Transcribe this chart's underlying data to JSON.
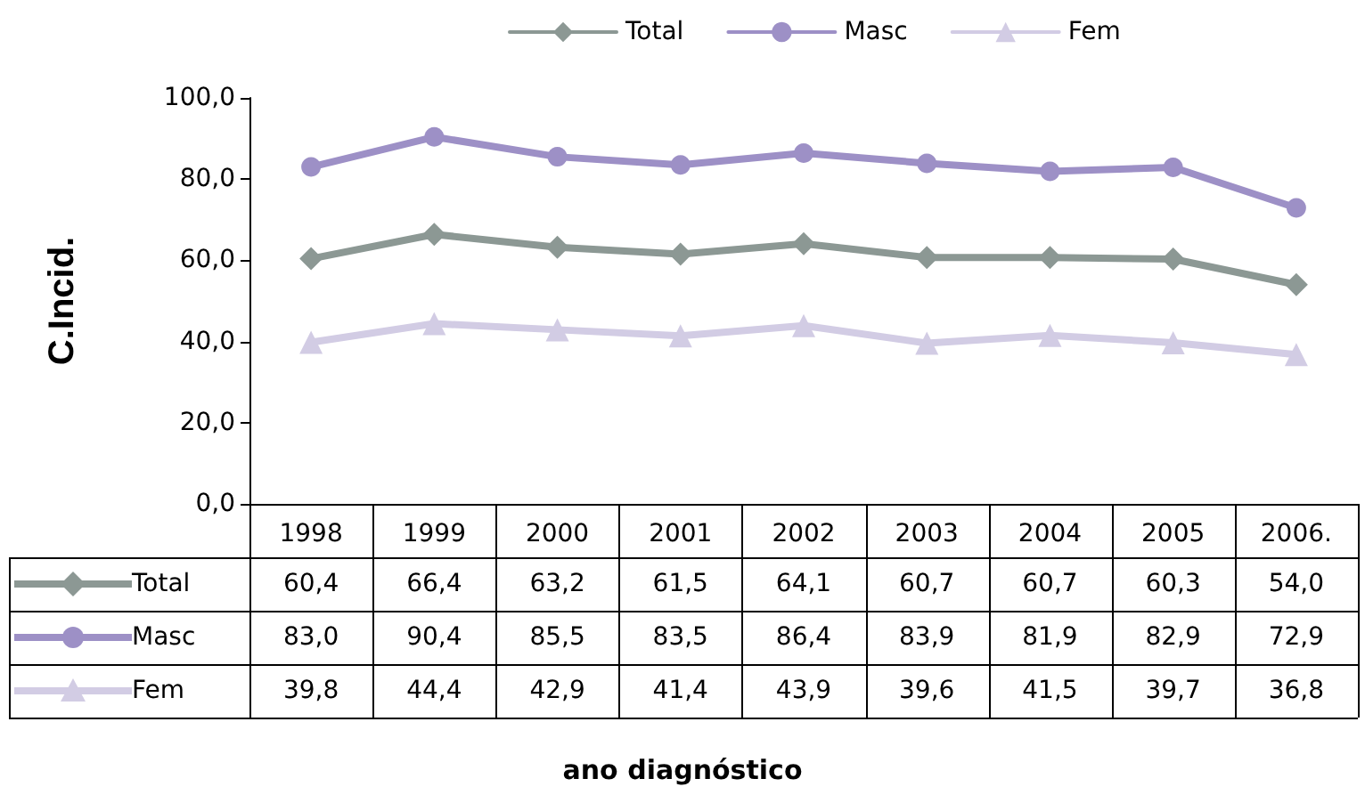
{
  "chart_data": {
    "type": "line",
    "ylabel": "C.Incid.",
    "annotations": [
      "ano diagnóstico"
    ],
    "categories": [
      "1998",
      "1999",
      "2000",
      "2001",
      "2002",
      "2003",
      "2004",
      "2005",
      "2006."
    ],
    "series": [
      {
        "name": "Total",
        "color": "#8c9894",
        "marker": "diamond",
        "values": [
          60.4,
          66.4,
          63.2,
          61.5,
          64.1,
          60.7,
          60.7,
          60.3,
          54.0
        ],
        "value_labels": [
          "60,4",
          "66,4",
          "63,2",
          "61,5",
          "64,1",
          "60,7",
          "60,7",
          "60,3",
          "54,0"
        ]
      },
      {
        "name": "Masc",
        "color": "#9d90c6",
        "marker": "circle",
        "values": [
          83.0,
          90.4,
          85.5,
          83.5,
          86.4,
          83.9,
          81.9,
          82.9,
          72.9
        ],
        "value_labels": [
          "83,0",
          "90,4",
          "85,5",
          "83,5",
          "86,4",
          "83,9",
          "81,9",
          "82,9",
          "72,9"
        ]
      },
      {
        "name": "Fem",
        "color": "#d2cce4",
        "marker": "triangle",
        "values": [
          39.8,
          44.4,
          42.9,
          41.4,
          43.9,
          39.6,
          41.5,
          39.7,
          36.8
        ],
        "value_labels": [
          "39,8",
          "44,4",
          "42,9",
          "41,4",
          "43,9",
          "39,6",
          "41,5",
          "39,7",
          "36,8"
        ]
      }
    ],
    "ylim": [
      0,
      100
    ],
    "yticks": [
      {
        "value": 0,
        "label": "0,0"
      },
      {
        "value": 20,
        "label": "20,0"
      },
      {
        "value": 40,
        "label": "40,0"
      },
      {
        "value": 60,
        "label": "60,0"
      },
      {
        "value": 80,
        "label": "80,0"
      },
      {
        "value": 100,
        "label": "100,0"
      }
    ],
    "grid": false,
    "legend": "top",
    "line_style": "solid"
  }
}
